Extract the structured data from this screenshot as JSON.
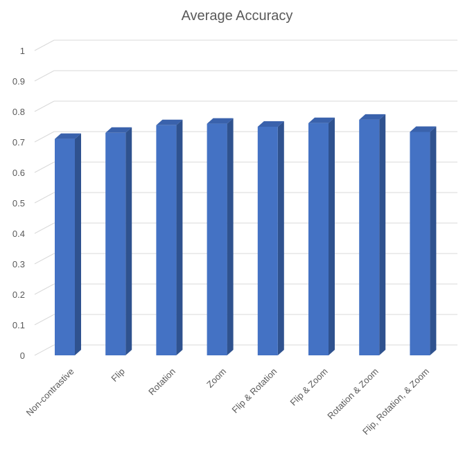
{
  "chart_data": {
    "type": "bar",
    "title": "Average Accuracy",
    "xlabel": "",
    "ylabel": "",
    "categories": [
      "Non-contrastive",
      "Flip",
      "Rotation",
      "Zoom",
      "Flip & Rotation",
      "Flip & Zoom",
      "Rotation & Zoom",
      "Flip, Rotation, & Zoom"
    ],
    "values": [
      0.71,
      0.73,
      0.755,
      0.76,
      0.75,
      0.762,
      0.773,
      0.733
    ],
    "ylim": [
      0,
      1
    ],
    "yticks": [
      "0",
      "0.1",
      "0.2",
      "0.3",
      "0.4",
      "0.5",
      "0.6",
      "0.7",
      "0.8",
      "0.9",
      "1"
    ],
    "grid": true,
    "legend": "none",
    "colors": {
      "bar_front": "#4472C4",
      "bar_side": "#2F528F",
      "bar_top": "#3A62AC",
      "grid": "#D9D9D9",
      "text": "#595959"
    }
  }
}
